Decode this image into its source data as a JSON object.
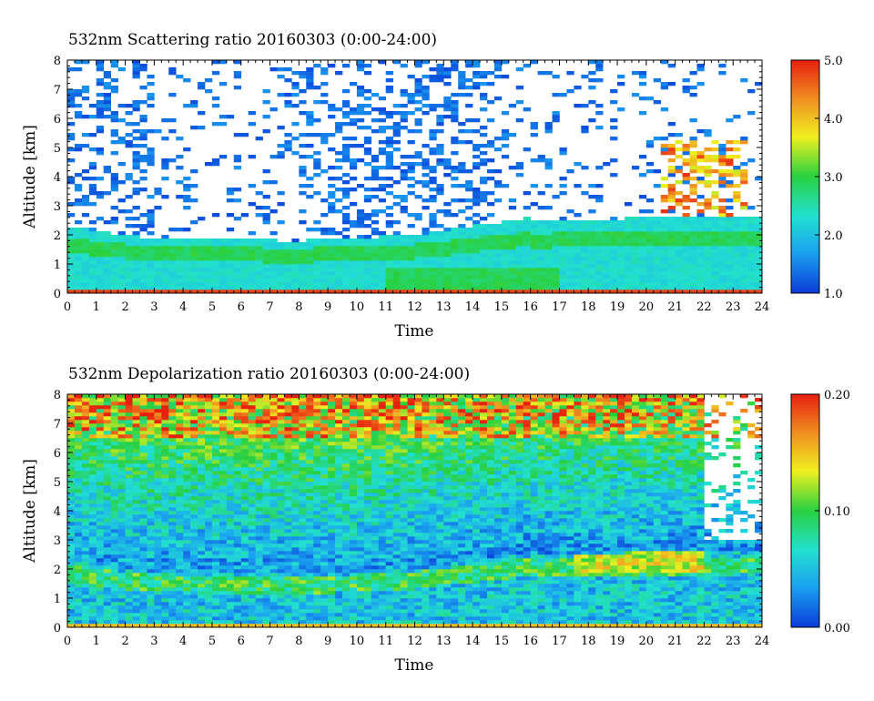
{
  "chart_data": [
    {
      "type": "heatmap",
      "title": "532nm Scattering ratio  20160303 (0:00-24:00)",
      "xlabel": "Time",
      "ylabel": "Altitude [km]",
      "xlim": [
        0,
        24
      ],
      "ylim": [
        0,
        8
      ],
      "x_ticks": [
        "0",
        "1",
        "2",
        "3",
        "4",
        "5",
        "6",
        "7",
        "8",
        "9",
        "10",
        "11",
        "12",
        "13",
        "14",
        "15",
        "16",
        "17",
        "18",
        "19",
        "20",
        "21",
        "22",
        "23",
        "24"
      ],
      "y_ticks": [
        "0",
        "1",
        "2",
        "3",
        "4",
        "5",
        "6",
        "7",
        "8"
      ],
      "colorbar": {
        "min": 1.0,
        "max": 5.0,
        "ticks": [
          "1.0",
          "2.0",
          "3.0",
          "4.0",
          "5.0"
        ]
      },
      "colormap": [
        "#0a3cd8",
        "#1aa0f0",
        "#22e0d0",
        "#28d040",
        "#f0f020",
        "#f09020",
        "#e82010"
      ],
      "grid": false
    },
    {
      "type": "heatmap",
      "title": "532nm Depolarization ratio  20160303 (0:00-24:00)",
      "xlabel": "Time",
      "ylabel": "Altitude [km]",
      "xlim": [
        0,
        24
      ],
      "ylim": [
        0,
        8
      ],
      "x_ticks": [
        "0",
        "1",
        "2",
        "3",
        "4",
        "5",
        "6",
        "7",
        "8",
        "9",
        "10",
        "11",
        "12",
        "13",
        "14",
        "15",
        "16",
        "17",
        "18",
        "19",
        "20",
        "21",
        "22",
        "23",
        "24"
      ],
      "y_ticks": [
        "0",
        "1",
        "2",
        "3",
        "4",
        "5",
        "6",
        "7",
        "8"
      ],
      "colorbar": {
        "min": 0.0,
        "max": 0.2,
        "ticks": [
          "0.00",
          "0.10",
          "0.20"
        ]
      },
      "colormap": [
        "#0a3cd8",
        "#1aa0f0",
        "#22e0d0",
        "#28d040",
        "#f0f020",
        "#f09020",
        "#e82010"
      ],
      "grid": false
    }
  ]
}
